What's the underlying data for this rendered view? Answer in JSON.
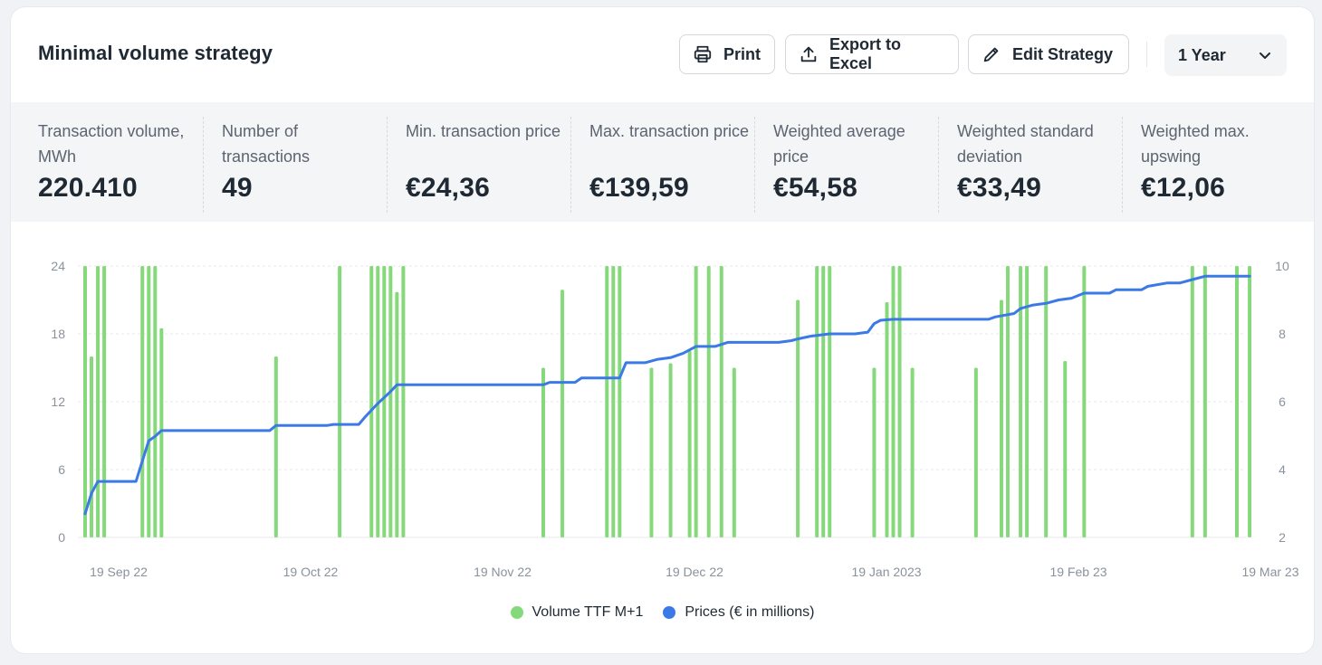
{
  "header": {
    "title": "Minimal volume strategy",
    "print_label": "Print",
    "export_label": "Export to Excel",
    "edit_label": "Edit Strategy",
    "period": "1 Year"
  },
  "stats": [
    {
      "label": "Transaction volume, MWh",
      "value": "220.410"
    },
    {
      "label": "Number of transactions",
      "value": "49"
    },
    {
      "label": "Min. transaction price",
      "value": "€24,36"
    },
    {
      "label": "Max. transaction price",
      "value": "€139,59"
    },
    {
      "label": "Weighted average price",
      "value": "€54,58"
    },
    {
      "label": "Weighted standard deviation",
      "value": "€33,49"
    },
    {
      "label": "Weighted max. upswing",
      "value": "€12,06"
    }
  ],
  "colors": {
    "volume": "#86d97a",
    "price": "#3b7ae6"
  },
  "chart_data": {
    "type": "bar+line",
    "x_start": "2022-09-19",
    "x_end": "2023-03-19",
    "x_tick_labels": [
      "19 Sep 22",
      "19 Oct 22",
      "19 Nov 22",
      "19 Dec 22",
      "19 Jan 2023",
      "19 Feb 23",
      "19 Mar 23"
    ],
    "y_left": {
      "min": 0,
      "max": 24,
      "ticks": [
        "0",
        "6",
        "12",
        "18",
        "24"
      ]
    },
    "y_right": {
      "min": 2,
      "max": 10,
      "ticks": [
        "2",
        "4",
        "6",
        "8",
        "10"
      ]
    },
    "grid": true,
    "legend_position": "bottom",
    "legend": [
      "Volume TTF M+1",
      "Prices (€ in millions)"
    ],
    "bars": [
      {
        "date": "2022-09-19",
        "value": 24
      },
      {
        "date": "2022-09-20",
        "value": 16
      },
      {
        "date": "2022-09-21",
        "value": 24
      },
      {
        "date": "2022-09-22",
        "value": 24
      },
      {
        "date": "2022-09-28",
        "value": 24
      },
      {
        "date": "2022-09-29",
        "value": 24
      },
      {
        "date": "2022-09-30",
        "value": 24
      },
      {
        "date": "2022-10-01",
        "value": 18.5
      },
      {
        "date": "2022-10-19",
        "value": 16
      },
      {
        "date": "2022-10-29",
        "value": 24
      },
      {
        "date": "2022-11-03",
        "value": 24
      },
      {
        "date": "2022-11-04",
        "value": 24
      },
      {
        "date": "2022-11-05",
        "value": 24
      },
      {
        "date": "2022-11-06",
        "value": 24
      },
      {
        "date": "2022-11-07",
        "value": 21.7
      },
      {
        "date": "2022-11-08",
        "value": 24
      },
      {
        "date": "2022-11-30",
        "value": 15
      },
      {
        "date": "2022-12-03",
        "value": 21.9
      },
      {
        "date": "2022-12-10",
        "value": 24
      },
      {
        "date": "2022-12-11",
        "value": 24
      },
      {
        "date": "2022-12-12",
        "value": 24
      },
      {
        "date": "2022-12-17",
        "value": 15
      },
      {
        "date": "2022-12-20",
        "value": 15.4
      },
      {
        "date": "2022-12-23",
        "value": 16.5
      },
      {
        "date": "2022-12-24",
        "value": 24
      },
      {
        "date": "2022-12-26",
        "value": 24
      },
      {
        "date": "2022-12-28",
        "value": 24
      },
      {
        "date": "2022-12-30",
        "value": 15
      },
      {
        "date": "2023-01-09",
        "value": 21
      },
      {
        "date": "2023-01-12",
        "value": 24
      },
      {
        "date": "2023-01-13",
        "value": 24
      },
      {
        "date": "2023-01-14",
        "value": 24
      },
      {
        "date": "2023-01-21",
        "value": 15
      },
      {
        "date": "2023-01-23",
        "value": 20.8
      },
      {
        "date": "2023-01-24",
        "value": 24
      },
      {
        "date": "2023-01-25",
        "value": 24
      },
      {
        "date": "2023-01-27",
        "value": 15
      },
      {
        "date": "2023-02-06",
        "value": 15
      },
      {
        "date": "2023-02-10",
        "value": 21
      },
      {
        "date": "2023-02-11",
        "value": 24
      },
      {
        "date": "2023-02-13",
        "value": 24
      },
      {
        "date": "2023-02-14",
        "value": 24
      },
      {
        "date": "2023-02-17",
        "value": 24
      },
      {
        "date": "2023-02-20",
        "value": 15.6
      },
      {
        "date": "2023-02-23",
        "value": 24
      },
      {
        "date": "2023-03-12",
        "value": 24
      },
      {
        "date": "2023-03-14",
        "value": 24
      },
      {
        "date": "2023-03-19",
        "value": 24
      },
      {
        "date": "2023-03-21",
        "value": 24
      }
    ],
    "price_series": [
      [
        "2022-09-19",
        2.7
      ],
      [
        "2022-09-20",
        3.3
      ],
      [
        "2022-09-21",
        3.65
      ],
      [
        "2022-09-27",
        3.65
      ],
      [
        "2022-09-28",
        4.25
      ],
      [
        "2022-09-29",
        4.85
      ],
      [
        "2022-09-30",
        4.98
      ],
      [
        "2022-10-01",
        5.15
      ],
      [
        "2022-10-18",
        5.15
      ],
      [
        "2022-10-19",
        5.3
      ],
      [
        "2022-10-27",
        5.3
      ],
      [
        "2022-10-28",
        5.33
      ],
      [
        "2022-11-01",
        5.33
      ],
      [
        "2022-11-02",
        5.55
      ],
      [
        "2022-11-03",
        5.75
      ],
      [
        "2022-11-04",
        5.95
      ],
      [
        "2022-11-06",
        6.3
      ],
      [
        "2022-11-07",
        6.5
      ],
      [
        "2022-11-30",
        6.5
      ],
      [
        "2022-12-01",
        6.57
      ],
      [
        "2022-12-05",
        6.57
      ],
      [
        "2022-12-06",
        6.7
      ],
      [
        "2022-12-12",
        6.7
      ],
      [
        "2022-12-13",
        7.15
      ],
      [
        "2022-12-16",
        7.15
      ],
      [
        "2022-12-18",
        7.25
      ],
      [
        "2022-12-20",
        7.3
      ],
      [
        "2022-12-22",
        7.43
      ],
      [
        "2022-12-24",
        7.63
      ],
      [
        "2022-12-27",
        7.63
      ],
      [
        "2022-12-29",
        7.75
      ],
      [
        "2023-01-06",
        7.75
      ],
      [
        "2023-01-08",
        7.8
      ],
      [
        "2023-01-09",
        7.85
      ],
      [
        "2023-01-11",
        7.93
      ],
      [
        "2023-01-14",
        8.0
      ],
      [
        "2023-01-18",
        8.0
      ],
      [
        "2023-01-20",
        8.05
      ],
      [
        "2023-01-21",
        8.3
      ],
      [
        "2023-01-22",
        8.4
      ],
      [
        "2023-01-24",
        8.43
      ],
      [
        "2023-02-08",
        8.43
      ],
      [
        "2023-02-09",
        8.5
      ],
      [
        "2023-02-12",
        8.6
      ],
      [
        "2023-02-13",
        8.75
      ],
      [
        "2023-02-15",
        8.85
      ],
      [
        "2023-02-17",
        8.9
      ],
      [
        "2023-02-19",
        9.0
      ],
      [
        "2023-02-21",
        9.05
      ],
      [
        "2023-02-23",
        9.2
      ],
      [
        "2023-02-27",
        9.2
      ],
      [
        "2023-02-28",
        9.3
      ],
      [
        "2023-03-04",
        9.3
      ],
      [
        "2023-03-05",
        9.4
      ],
      [
        "2023-03-08",
        9.5
      ],
      [
        "2023-03-10",
        9.5
      ],
      [
        "2023-03-12",
        9.6
      ],
      [
        "2023-03-14",
        9.7
      ],
      [
        "2023-03-21",
        9.7
      ]
    ]
  }
}
